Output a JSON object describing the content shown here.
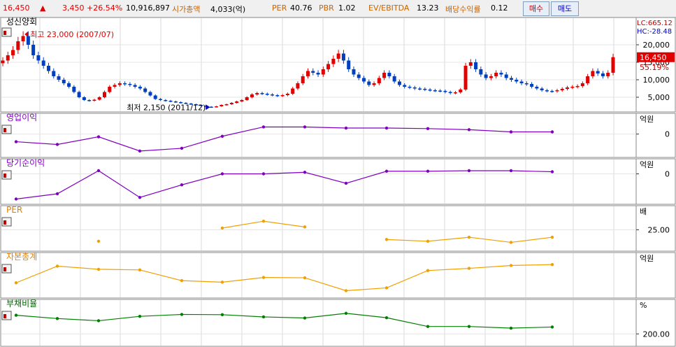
{
  "header": {
    "price": "16,450",
    "change_arrow": "▲",
    "change": "3,450",
    "change_pct": "+26.54%",
    "volume": "10,916,897",
    "mcap_label": "시가총액",
    "mcap_value": "4,033(억)",
    "per_label": "PER",
    "per_value": "40.76",
    "pbr_label": "PBR",
    "pbr_value": "1.02",
    "ev_label": "EV/EBITDA",
    "ev_value": "13.23",
    "div_label": "배당수익률",
    "div_value": "0.12",
    "buy_label": "매수",
    "sell_label": "매도",
    "colors": {
      "up": "#e00000",
      "label": "#c86400",
      "value": "#000000"
    }
  },
  "chart_data": [
    {
      "type": "candlestick",
      "title": "성신양회",
      "y_ticks": [
        "20,000",
        "15,000",
        "10,000",
        "5,000"
      ],
      "y_tick_values": [
        20000,
        15000,
        10000,
        5000
      ],
      "ylim": [
        2000,
        25000
      ],
      "lc_label": "LC:665.12",
      "hc_label": "HC:-28.48",
      "last_price_label": "16,450",
      "last_price": 16450,
      "pct_label": "55.19%",
      "annotations": [
        {
          "text": "최고 23,000 (2007/07)",
          "value": 23000,
          "color": "#e00000"
        },
        {
          "text": "최저 2,150 (2011/12)",
          "value": 2150,
          "color": "#0000c0"
        }
      ],
      "up_color": "#e00000",
      "down_color": "#0040c0",
      "closes": [
        15500,
        17000,
        18500,
        21000,
        22500,
        20000,
        17000,
        15500,
        14000,
        12500,
        11000,
        10000,
        9000,
        8000,
        6500,
        5000,
        4200,
        4000,
        4300,
        5000,
        6500,
        8000,
        8500,
        9000,
        8800,
        8500,
        8000,
        7500,
        6500,
        5500,
        4500,
        4200,
        4000,
        3800,
        3600,
        3400,
        3200,
        3000,
        2800,
        2600,
        2300,
        2200,
        2400,
        2800,
        3000,
        3400,
        3800,
        4200,
        5000,
        5800,
        6200,
        6000,
        5800,
        5600,
        5400,
        5600,
        6000,
        7500,
        9000,
        11000,
        12500,
        12000,
        11500,
        13000,
        14500,
        16000,
        17500,
        15500,
        13000,
        11500,
        10500,
        9500,
        8500,
        9000,
        10500,
        12000,
        11000,
        9500,
        8500,
        8000,
        7800,
        7500,
        7400,
        7200,
        7000,
        6900,
        6800,
        6500,
        6200,
        6400,
        7200,
        14000,
        15000,
        13000,
        11500,
        10500,
        11000,
        12000,
        11500,
        10500,
        10000,
        9500,
        9000,
        8800,
        8000,
        7500,
        7000,
        6800,
        6700,
        7000,
        7400,
        7800,
        8000,
        8200,
        9000,
        11000,
        12500,
        11800,
        11000,
        12000,
        16450
      ]
    },
    {
      "type": "line",
      "title": "영업이익",
      "unit": "억원",
      "y_ticks": [
        "0"
      ],
      "y_tick_values": [
        0
      ],
      "ylim": [
        -35,
        20
      ],
      "color": "#8000c0",
      "values": [
        -14,
        -19,
        -5,
        -31,
        -26,
        -4,
        13,
        13,
        11,
        11,
        10,
        8,
        4,
        4
      ]
    },
    {
      "type": "line",
      "title": "당기순이익",
      "unit": "억원",
      "y_ticks": [
        "0"
      ],
      "y_tick_values": [
        0
      ],
      "ylim": [
        -50,
        10
      ],
      "color": "#8000c0",
      "values": [
        -48,
        -38,
        6,
        -45,
        -21,
        0,
        0,
        3,
        -18,
        5,
        5,
        6,
        6,
        4
      ]
    },
    {
      "type": "line",
      "title": "PER",
      "unit": "배",
      "y_ticks": [
        "25.00"
      ],
      "y_tick_values": [
        25
      ],
      "ylim": [
        -5,
        50
      ],
      "color": "#f0a000",
      "values": [
        null,
        null,
        5,
        null,
        null,
        28,
        40,
        30,
        null,
        8,
        5,
        12,
        3,
        12
      ]
    },
    {
      "type": "line",
      "title": "자본총계",
      "unit": "억원",
      "y_ticks": [],
      "ylim": [
        0,
        100
      ],
      "color": "#f0a000",
      "values": [
        35,
        88,
        78,
        76,
        42,
        37,
        52,
        51,
        10,
        19,
        74,
        81,
        90,
        93
      ]
    },
    {
      "type": "line",
      "title": "부채비율",
      "unit": "%",
      "y_ticks": [
        "200.00"
      ],
      "y_tick_values": [
        200
      ],
      "ylim": [
        170,
        290
      ],
      "color": "#008000",
      "values": [
        268,
        256,
        248,
        264,
        271,
        270,
        262,
        258,
        275,
        259,
        227,
        227,
        221,
        225
      ]
    }
  ]
}
